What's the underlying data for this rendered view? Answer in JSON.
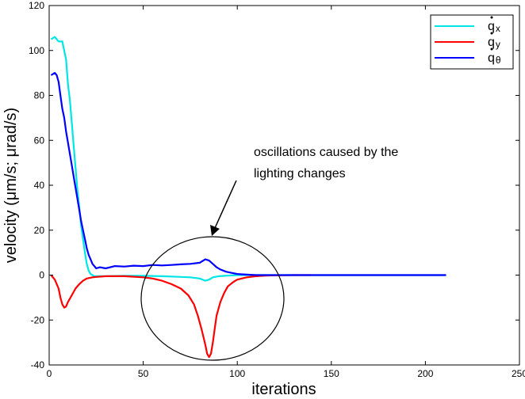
{
  "chart_data": {
    "type": "line",
    "title": "",
    "xlabel": "iterations",
    "ylabel": "velocity (μm/s; μrad/s)",
    "xlim": [
      0,
      250
    ],
    "ylim": [
      -40,
      120
    ],
    "xticks": [
      0,
      50,
      100,
      150,
      200,
      250
    ],
    "yticks": [
      -40,
      -20,
      0,
      20,
      40,
      60,
      80,
      100,
      120
    ],
    "grid": false,
    "legend_position": "top-right",
    "series": [
      {
        "name": "q̇x",
        "symbol": "q",
        "subscript": "x",
        "color": "#00e5e5",
        "points": [
          [
            1,
            105
          ],
          [
            3,
            106
          ],
          [
            5,
            104
          ],
          [
            7,
            104
          ],
          [
            9,
            96
          ],
          [
            10,
            85
          ],
          [
            11,
            78
          ],
          [
            12,
            68
          ],
          [
            13,
            58
          ],
          [
            14,
            48
          ],
          [
            15,
            38
          ],
          [
            16,
            30
          ],
          [
            17,
            22
          ],
          [
            18,
            16
          ],
          [
            19,
            10
          ],
          [
            20,
            5
          ],
          [
            21,
            2
          ],
          [
            22,
            0.5
          ],
          [
            23,
            0
          ],
          [
            24,
            -0.5
          ],
          [
            25,
            -0.5
          ],
          [
            30,
            -0.5
          ],
          [
            40,
            -0.3
          ],
          [
            50,
            -0.3
          ],
          [
            60,
            -0.5
          ],
          [
            70,
            -0.8
          ],
          [
            75,
            -1
          ],
          [
            80,
            -1.5
          ],
          [
            83,
            -2.5
          ],
          [
            85,
            -2
          ],
          [
            87,
            -1
          ],
          [
            90,
            -0.5
          ],
          [
            95,
            -0.2
          ],
          [
            100,
            0
          ],
          [
            110,
            0
          ],
          [
            150,
            0
          ],
          [
            211,
            0
          ]
        ]
      },
      {
        "name": "q̇y",
        "symbol": "q",
        "subscript": "y",
        "color": "#ff0000",
        "points": [
          [
            1,
            0
          ],
          [
            3,
            -2
          ],
          [
            5,
            -6
          ],
          [
            6,
            -10
          ],
          [
            7,
            -13
          ],
          [
            8,
            -14.5
          ],
          [
            9,
            -14
          ],
          [
            10,
            -12
          ],
          [
            12,
            -9
          ],
          [
            14,
            -6
          ],
          [
            16,
            -4
          ],
          [
            18,
            -2.5
          ],
          [
            20,
            -1.5
          ],
          [
            23,
            -1
          ],
          [
            25,
            -0.8
          ],
          [
            30,
            -0.5
          ],
          [
            40,
            -0.5
          ],
          [
            50,
            -1
          ],
          [
            55,
            -1.5
          ],
          [
            60,
            -2.5
          ],
          [
            65,
            -4
          ],
          [
            70,
            -6
          ],
          [
            74,
            -9
          ],
          [
            77,
            -13
          ],
          [
            79,
            -18
          ],
          [
            81,
            -24
          ],
          [
            83,
            -31
          ],
          [
            84,
            -35
          ],
          [
            85,
            -36.5
          ],
          [
            86,
            -35
          ],
          [
            87,
            -30
          ],
          [
            88,
            -24
          ],
          [
            89,
            -18
          ],
          [
            91,
            -12
          ],
          [
            93,
            -8
          ],
          [
            95,
            -5
          ],
          [
            98,
            -3
          ],
          [
            100,
            -2
          ],
          [
            105,
            -1
          ],
          [
            110,
            -0.5
          ],
          [
            115,
            -0.2
          ],
          [
            120,
            -0.1
          ],
          [
            130,
            0
          ],
          [
            139,
            0
          ]
        ]
      },
      {
        "name": "q̇θ",
        "symbol": "q",
        "subscript": "θ",
        "color": "#0000ff",
        "points": [
          [
            1,
            89
          ],
          [
            3,
            90
          ],
          [
            4,
            89
          ],
          [
            5,
            86
          ],
          [
            6,
            80
          ],
          [
            7,
            74
          ],
          [
            8,
            70
          ],
          [
            9,
            64
          ],
          [
            10,
            59
          ],
          [
            11,
            54
          ],
          [
            12,
            49
          ],
          [
            13,
            44
          ],
          [
            14,
            39
          ],
          [
            15,
            34
          ],
          [
            16,
            29
          ],
          [
            17,
            24
          ],
          [
            18,
            20
          ],
          [
            19,
            16
          ],
          [
            20,
            12
          ],
          [
            21,
            9
          ],
          [
            22,
            7
          ],
          [
            23,
            5
          ],
          [
            24,
            4
          ],
          [
            25,
            3
          ],
          [
            27,
            3.5
          ],
          [
            30,
            3
          ],
          [
            35,
            4
          ],
          [
            40,
            3.8
          ],
          [
            45,
            4.2
          ],
          [
            50,
            4
          ],
          [
            55,
            4.5
          ],
          [
            60,
            4.3
          ],
          [
            65,
            4.5
          ],
          [
            70,
            4.8
          ],
          [
            75,
            5
          ],
          [
            80,
            5.5
          ],
          [
            83,
            7
          ],
          [
            85,
            6.5
          ],
          [
            87,
            5
          ],
          [
            89,
            3.5
          ],
          [
            91,
            2.5
          ],
          [
            94,
            1.5
          ],
          [
            97,
            1
          ],
          [
            100,
            0.5
          ],
          [
            105,
            0.2
          ],
          [
            110,
            0
          ],
          [
            150,
            0
          ],
          [
            211,
            0
          ]
        ]
      }
    ],
    "annotation": {
      "text_lines": [
        "oscillations caused by the",
        "lighting changes"
      ]
    }
  }
}
